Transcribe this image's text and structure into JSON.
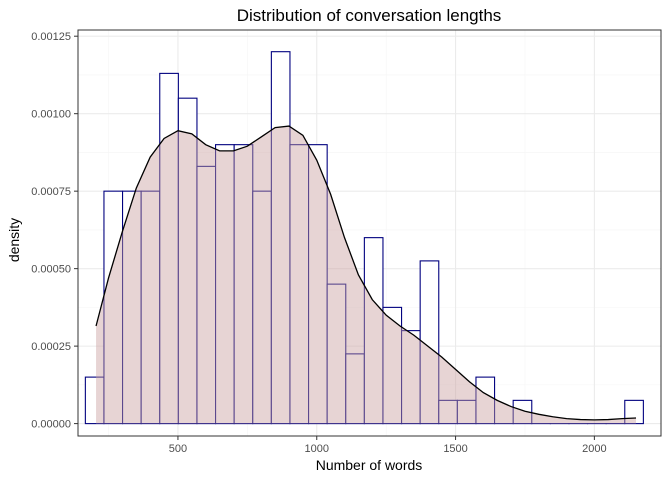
{
  "chart_data": {
    "type": "histogram",
    "title": "Distribution of conversation lengths",
    "xlabel": "Number of words",
    "ylabel": "density",
    "xlim": [
      140,
      2240
    ],
    "ylim": [
      -4e-05,
      0.00127
    ],
    "x_ticks": [
      {
        "value": 500,
        "label": "500"
      },
      {
        "value": 1000,
        "label": "1000"
      },
      {
        "value": 1500,
        "label": "1500"
      },
      {
        "value": 2000,
        "label": "2000"
      }
    ],
    "y_ticks": [
      {
        "value": 0,
        "label": "0.00000"
      },
      {
        "value": 0.00025,
        "label": "0.00025"
      },
      {
        "value": 0.0005,
        "label": "0.00050"
      },
      {
        "value": 0.00075,
        "label": "0.00075"
      },
      {
        "value": 0.001,
        "label": "0.00100"
      },
      {
        "value": 0.00125,
        "label": "0.00125"
      }
    ],
    "grid": true,
    "bin_width": 67,
    "bins": [
      {
        "x": 200,
        "density": 0.00015
      },
      {
        "x": 267,
        "density": 0.00075
      },
      {
        "x": 334,
        "density": 0.00075
      },
      {
        "x": 401,
        "density": 0.00075
      },
      {
        "x": 468,
        "density": 0.00113
      },
      {
        "x": 535,
        "density": 0.00105
      },
      {
        "x": 602,
        "density": 0.00083
      },
      {
        "x": 669,
        "density": 0.0009
      },
      {
        "x": 736,
        "density": 0.0009
      },
      {
        "x": 803,
        "density": 0.00075
      },
      {
        "x": 870,
        "density": 0.0012
      },
      {
        "x": 937,
        "density": 0.0009
      },
      {
        "x": 1004,
        "density": 0.0009
      },
      {
        "x": 1071,
        "density": 0.00045
      },
      {
        "x": 1138,
        "density": 0.000225
      },
      {
        "x": 1205,
        "density": 0.0006
      },
      {
        "x": 1272,
        "density": 0.000375
      },
      {
        "x": 1339,
        "density": 0.0003
      },
      {
        "x": 1406,
        "density": 0.000525
      },
      {
        "x": 1473,
        "density": 7.5e-05
      },
      {
        "x": 1540,
        "density": 7.5e-05
      },
      {
        "x": 1607,
        "density": 0.00015
      },
      {
        "x": 1674,
        "density": 0.0
      },
      {
        "x": 1741,
        "density": 7.5e-05
      },
      {
        "x": 1808,
        "density": 0.0
      },
      {
        "x": 1875,
        "density": 0.0
      },
      {
        "x": 1942,
        "density": 0.0
      },
      {
        "x": 2009,
        "density": 0.0
      },
      {
        "x": 2076,
        "density": 0.0
      },
      {
        "x": 2143,
        "density": 7.5e-05
      }
    ],
    "density_curve": {
      "x": [
        205,
        250,
        300,
        350,
        400,
        450,
        500,
        550,
        600,
        650,
        700,
        750,
        800,
        850,
        900,
        950,
        1000,
        1050,
        1100,
        1150,
        1200,
        1250,
        1300,
        1350,
        1400,
        1450,
        1500,
        1550,
        1600,
        1650,
        1700,
        1750,
        1800,
        1850,
        1900,
        1950,
        2000,
        2050,
        2100,
        2150
      ],
      "y": [
        0.000315,
        0.00047,
        0.00062,
        0.00076,
        0.00086,
        0.00092,
        0.000945,
        0.000935,
        0.0009,
        0.00088,
        0.00088,
        0.000895,
        0.000925,
        0.000955,
        0.00096,
        0.00093,
        0.00085,
        0.00074,
        0.0006,
        0.00048,
        0.0004,
        0.00035,
        0.000315,
        0.000285,
        0.00025,
        0.000215,
        0.000175,
        0.000135,
        0.0001,
        7.5e-05,
        5.5e-05,
        4e-05,
        3e-05,
        2.2e-05,
        1.6e-05,
        1.3e-05,
        1.2e-05,
        1.3e-05,
        1.6e-05,
        1.8e-05
      ]
    },
    "colors": {
      "bar_outline": "#00007f",
      "bar_fill": "#ffffff",
      "density_fill": "#c9a0a0",
      "density_fill_opacity": 0.45,
      "density_line": "#000000",
      "panel_border": "#333333",
      "grid_major": "#ebebeb",
      "grid_minor": "#f5f5f5",
      "background": "#ffffff"
    }
  }
}
